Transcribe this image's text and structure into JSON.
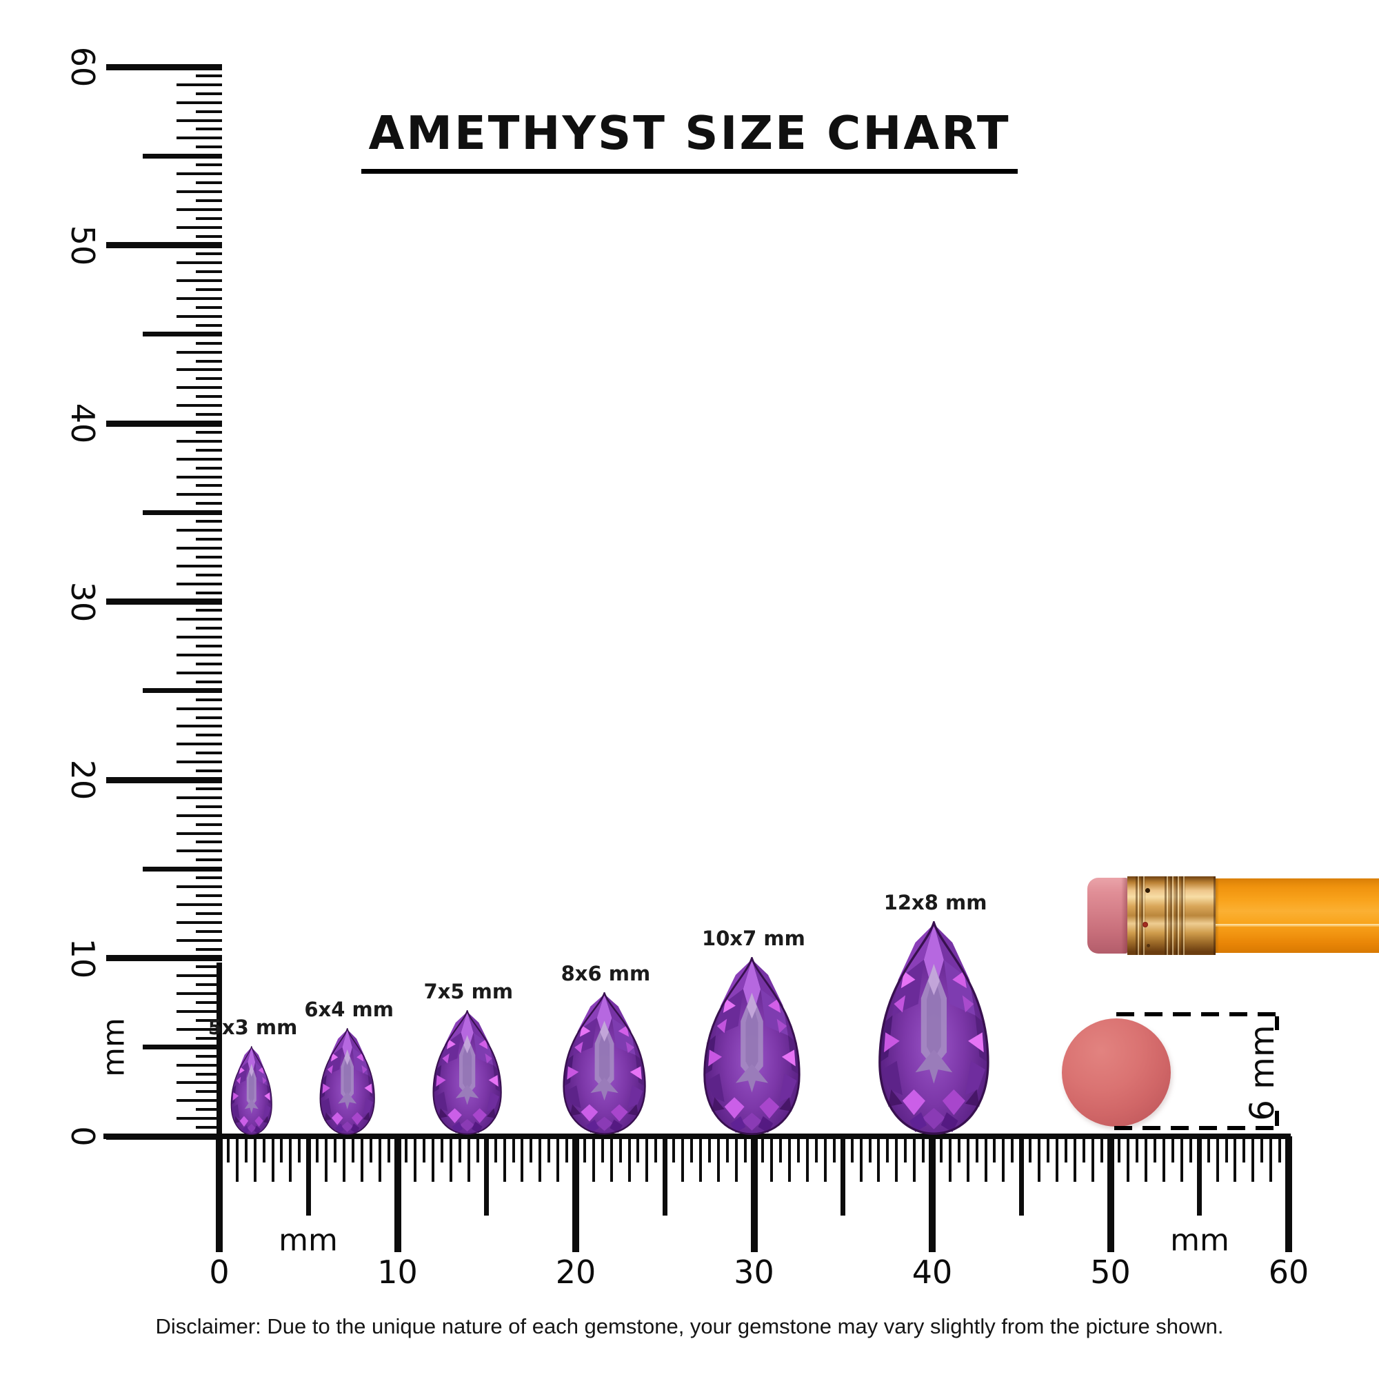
{
  "title": "AMETHYST SIZE CHART",
  "disclaimer": "Disclaimer: Due to the unique nature of each gemstone, your gemstone may vary slightly from the picture shown.",
  "vertical_ruler": {
    "unit": "mm",
    "tick_labels": [
      "0",
      "10",
      "20",
      "30",
      "40",
      "50",
      "60"
    ],
    "range_mm": [
      0,
      60
    ]
  },
  "horizontal_ruler": {
    "unit": "mm",
    "tick_labels": [
      "0",
      "10",
      "20",
      "30",
      "40",
      "50",
      "60"
    ],
    "range_mm": [
      0,
      60
    ]
  },
  "gems": [
    {
      "label": "5x3 mm",
      "length_mm": 5,
      "width_mm": 3,
      "ruler_position_mm": 1.8
    },
    {
      "label": "6x4 mm",
      "length_mm": 6,
      "width_mm": 4,
      "ruler_position_mm": 7.2
    },
    {
      "label": "7x5 mm",
      "length_mm": 7,
      "width_mm": 5,
      "ruler_position_mm": 13.9
    },
    {
      "label": "8x6 mm",
      "length_mm": 8,
      "width_mm": 6,
      "ruler_position_mm": 21.6
    },
    {
      "label": "10x7 mm",
      "length_mm": 10,
      "width_mm": 7,
      "ruler_position_mm": 29.9
    },
    {
      "label": "12x8 mm",
      "length_mm": 12,
      "width_mm": 8,
      "ruler_position_mm": 40.1
    }
  ],
  "reference_objects": {
    "pencil": {
      "name": "pencil with eraser"
    },
    "eraser_end": {
      "label": "6 mm",
      "diameter_mm": 6
    }
  },
  "colors": {
    "background": "#ffffff",
    "ink": "#0c0c0c",
    "gem_purple_dark": "#4a176e",
    "gem_purple_mid": "#7c37a8",
    "gem_purple_light": "#b668e0",
    "gem_magenta_sparkle": "#e673f5",
    "gem_table": "#a387c2",
    "pencil_orange": "#f9a41d",
    "ferrule_gold": "#d9a659",
    "eraser_pink": "#d57f89",
    "eraser_end_salmon": "#d06667"
  }
}
